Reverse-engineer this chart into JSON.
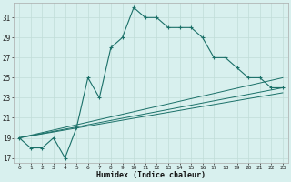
{
  "title": "",
  "xlabel": "Humidex (Indice chaleur)",
  "bg_color": "#d8f0ee",
  "grid_color": "#c0ddd8",
  "line_color": "#1a7068",
  "xlim": [
    -0.5,
    23.5
  ],
  "ylim": [
    16.5,
    32.5
  ],
  "xticks": [
    0,
    1,
    2,
    3,
    4,
    5,
    6,
    7,
    8,
    9,
    10,
    11,
    12,
    13,
    14,
    15,
    16,
    17,
    18,
    19,
    20,
    21,
    22,
    23
  ],
  "yticks": [
    17,
    19,
    21,
    23,
    25,
    27,
    29,
    31
  ],
  "series1": [
    19,
    18,
    18,
    19,
    17,
    20,
    25,
    23,
    28,
    29,
    32,
    31,
    31,
    30,
    30,
    30,
    29,
    27,
    27,
    26,
    25,
    25,
    24,
    24
  ],
  "line2_x": [
    0,
    23
  ],
  "line2_y": [
    19,
    25
  ],
  "line3_x": [
    0,
    23
  ],
  "line3_y": [
    19,
    24
  ],
  "line4_x": [
    0,
    23
  ],
  "line4_y": [
    19,
    23.5
  ]
}
